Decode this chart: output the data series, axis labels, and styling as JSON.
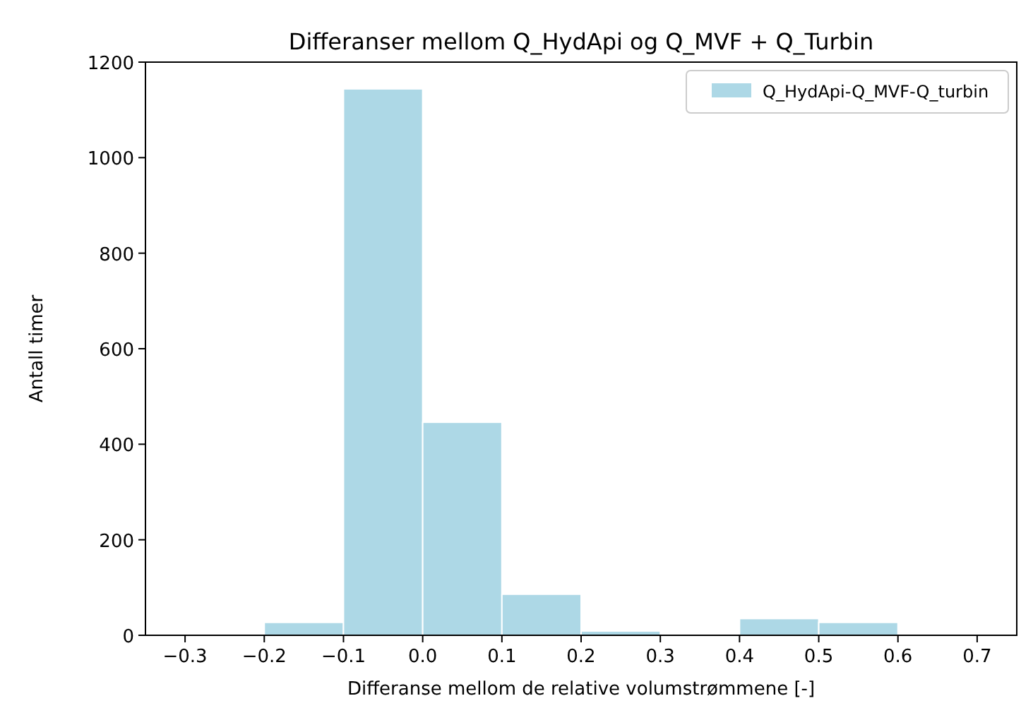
{
  "chart_data": {
    "type": "histogram",
    "title": "Differanser mellom Q_HydApi og Q_MVF + Q_Turbin",
    "xlabel": "Differanse mellom de relative volumstrømmene [-]",
    "ylabel": "Antall timer",
    "bins": [
      -0.2,
      -0.1,
      0.0,
      0.1,
      0.2,
      0.3,
      0.4,
      0.5,
      0.6
    ],
    "series": [
      {
        "name": "Q_HydApi-Q_MVF-Q_turbin",
        "color": "#add8e6",
        "values": [
          27,
          1144,
          446,
          86,
          9,
          0,
          35,
          27
        ]
      }
    ],
    "xlim": [
      -0.35,
      0.75
    ],
    "xticks": [
      {
        "value": -0.3,
        "label": "−0.3"
      },
      {
        "value": -0.2,
        "label": "−0.2"
      },
      {
        "value": -0.1,
        "label": "−0.1"
      },
      {
        "value": 0,
        "label": "0.0"
      },
      0.1,
      0.2,
      0.3,
      0.4,
      0.5,
      0.6,
      0.7
    ],
    "ylim": [
      0,
      1200
    ],
    "yticks": [
      0,
      200,
      400,
      600,
      800,
      1000,
      1200
    ],
    "grid": false,
    "legend": "top right"
  }
}
